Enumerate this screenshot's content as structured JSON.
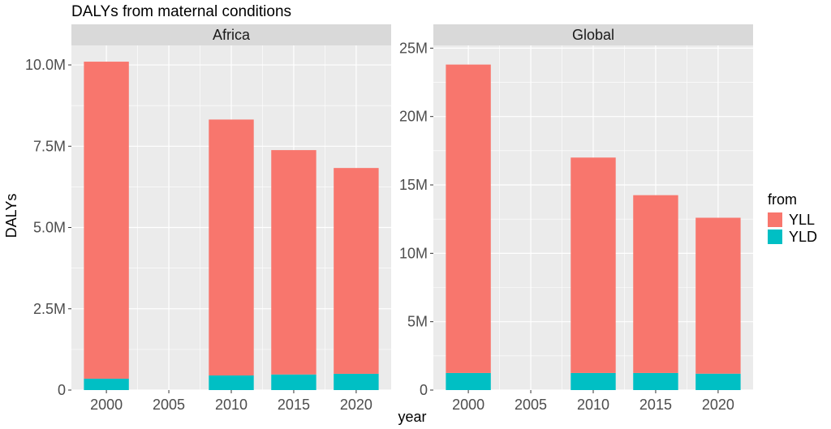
{
  "chart_data": {
    "type": "bar",
    "stacked": true,
    "title": "DALYs from maternal conditions",
    "xlabel": "year",
    "ylabel": "DALYs",
    "x_ticks": [
      "2000",
      "2005",
      "2010",
      "2015",
      "2020"
    ],
    "x_range": [
      1997.2,
      2022.8
    ],
    "grid": true,
    "legend": {
      "title": "from",
      "position": "right",
      "entries": [
        {
          "name": "YLL",
          "color": "#F8766D"
        },
        {
          "name": "YLD",
          "color": "#00BFC4"
        }
      ]
    },
    "panels": [
      {
        "label": "Africa",
        "ylim": [
          0,
          10.6
        ],
        "y_ticks": [
          0,
          2.5,
          5,
          7.5,
          10
        ],
        "y_tick_labels": [
          "0",
          "2.5M",
          "5.0M",
          "7.5M",
          "10.0M"
        ],
        "unit": "millions",
        "x": [
          2000,
          2010,
          2015,
          2020
        ],
        "series": [
          {
            "name": "YLD",
            "values": [
              0.35,
              0.45,
              0.48,
              0.5
            ]
          },
          {
            "name": "YLL",
            "values": [
              9.75,
              7.87,
              6.9,
              6.33
            ]
          }
        ]
      },
      {
        "label": "Global",
        "ylim": [
          0,
          25.2
        ],
        "y_ticks": [
          0,
          5,
          10,
          15,
          20,
          25
        ],
        "y_tick_labels": [
          "0",
          "5M",
          "10M",
          "15M",
          "20M",
          "25M"
        ],
        "unit": "millions",
        "x": [
          2000,
          2010,
          2015,
          2020
        ],
        "series": [
          {
            "name": "YLD",
            "values": [
              1.25,
              1.25,
              1.25,
              1.2
            ]
          },
          {
            "name": "YLL",
            "values": [
              22.55,
              15.75,
              13.0,
              11.4
            ]
          }
        ]
      }
    ]
  }
}
